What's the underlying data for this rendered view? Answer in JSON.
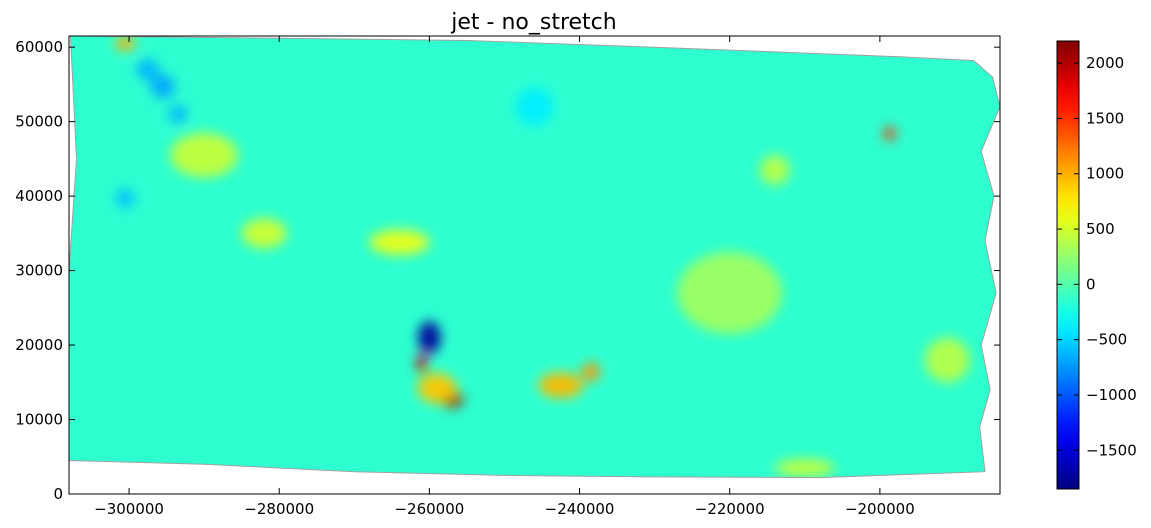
{
  "chart_data": {
    "type": "heatmap",
    "title": "jet - no_stretch",
    "xlabel": "",
    "ylabel": "",
    "colormap": "jet",
    "xlim": [
      -308000,
      -184000
    ],
    "ylim": [
      0,
      61500
    ],
    "x_ticks": [
      -300000,
      -280000,
      -260000,
      -240000,
      -220000,
      -200000
    ],
    "x_tick_labels": [
      "−300000",
      "−280000",
      "−260000",
      "−240000",
      "−220000",
      "−200000"
    ],
    "y_ticks": [
      0,
      10000,
      20000,
      30000,
      40000,
      50000,
      60000
    ],
    "y_tick_labels": [
      "0",
      "10000",
      "20000",
      "30000",
      "40000",
      "50000",
      "60000"
    ],
    "colorbar": {
      "vmin": -1850,
      "vmax": 2200,
      "ticks": [
        -1500,
        -1000,
        -500,
        0,
        500,
        1000,
        1500,
        2000
      ],
      "tick_labels": [
        "−1500",
        "−1000",
        "−500",
        "0",
        "500",
        "1000",
        "1500",
        "2000"
      ]
    },
    "base_value": -150,
    "data_outline": [
      [
        -307200,
        61500
      ],
      [
        -280000,
        61200
      ],
      [
        -255000,
        60900
      ],
      [
        -230000,
        60000
      ],
      [
        -210000,
        59200
      ],
      [
        -197000,
        58700
      ],
      [
        -187500,
        58200
      ],
      [
        -185000,
        56000
      ],
      [
        -184000,
        52000
      ],
      [
        -186500,
        46000
      ],
      [
        -184800,
        40000
      ],
      [
        -186000,
        34000
      ],
      [
        -184500,
        27000
      ],
      [
        -186500,
        20000
      ],
      [
        -185300,
        14000
      ],
      [
        -186700,
        9000
      ],
      [
        -186000,
        3000
      ],
      [
        -208000,
        2200
      ],
      [
        -230000,
        2300
      ],
      [
        -250000,
        2500
      ],
      [
        -270000,
        3000
      ],
      [
        -290000,
        4000
      ],
      [
        -308000,
        4500
      ],
      [
        -308000,
        30000
      ],
      [
        -307000,
        45000
      ],
      [
        -307800,
        61500
      ]
    ],
    "features": [
      {
        "x": -260000,
        "y": 21000,
        "value": -1750,
        "radius_x": 1500,
        "radius_y": 2200
      },
      {
        "x": -261000,
        "y": 17500,
        "value": 1900,
        "radius_x": 700,
        "radius_y": 1300
      },
      {
        "x": -257000,
        "y": 12700,
        "value": 2050,
        "radius_x": 1500,
        "radius_y": 1100
      },
      {
        "x": -259000,
        "y": 14200,
        "value": 900,
        "radius_x": 2600,
        "radius_y": 2000
      },
      {
        "x": -242500,
        "y": 14600,
        "value": 950,
        "radius_x": 3000,
        "radius_y": 1700
      },
      {
        "x": -238500,
        "y": 16400,
        "value": 1100,
        "radius_x": 1200,
        "radius_y": 1200
      },
      {
        "x": -198700,
        "y": 48400,
        "value": 1500,
        "radius_x": 800,
        "radius_y": 900
      },
      {
        "x": -300500,
        "y": 60500,
        "value": 1000,
        "radius_x": 1300,
        "radius_y": 1000
      },
      {
        "x": -297500,
        "y": 57000,
        "value": -650,
        "radius_x": 1500,
        "radius_y": 1400
      },
      {
        "x": -295500,
        "y": 54700,
        "value": -700,
        "radius_x": 1600,
        "radius_y": 1600
      },
      {
        "x": -293500,
        "y": 51000,
        "value": -650,
        "radius_x": 1200,
        "radius_y": 1200
      },
      {
        "x": -300500,
        "y": 39700,
        "value": -600,
        "radius_x": 1300,
        "radius_y": 1200
      },
      {
        "x": -290000,
        "y": 45500,
        "value": 450,
        "radius_x": 4500,
        "radius_y": 3000
      },
      {
        "x": -282000,
        "y": 35000,
        "value": 500,
        "radius_x": 3000,
        "radius_y": 2000
      },
      {
        "x": -264000,
        "y": 33800,
        "value": 600,
        "radius_x": 4000,
        "radius_y": 1700
      },
      {
        "x": -214000,
        "y": 43500,
        "value": 400,
        "radius_x": 2000,
        "radius_y": 2000
      },
      {
        "x": -220000,
        "y": 27000,
        "value": 300,
        "radius_x": 7000,
        "radius_y": 5500
      },
      {
        "x": -191000,
        "y": 18000,
        "value": 400,
        "radius_x": 3000,
        "radius_y": 3000
      },
      {
        "x": -210000,
        "y": 3500,
        "value": 450,
        "radius_x": 4000,
        "radius_y": 1200
      },
      {
        "x": -246000,
        "y": 52000,
        "value": -400,
        "radius_x": 2500,
        "radius_y": 2500
      }
    ]
  }
}
